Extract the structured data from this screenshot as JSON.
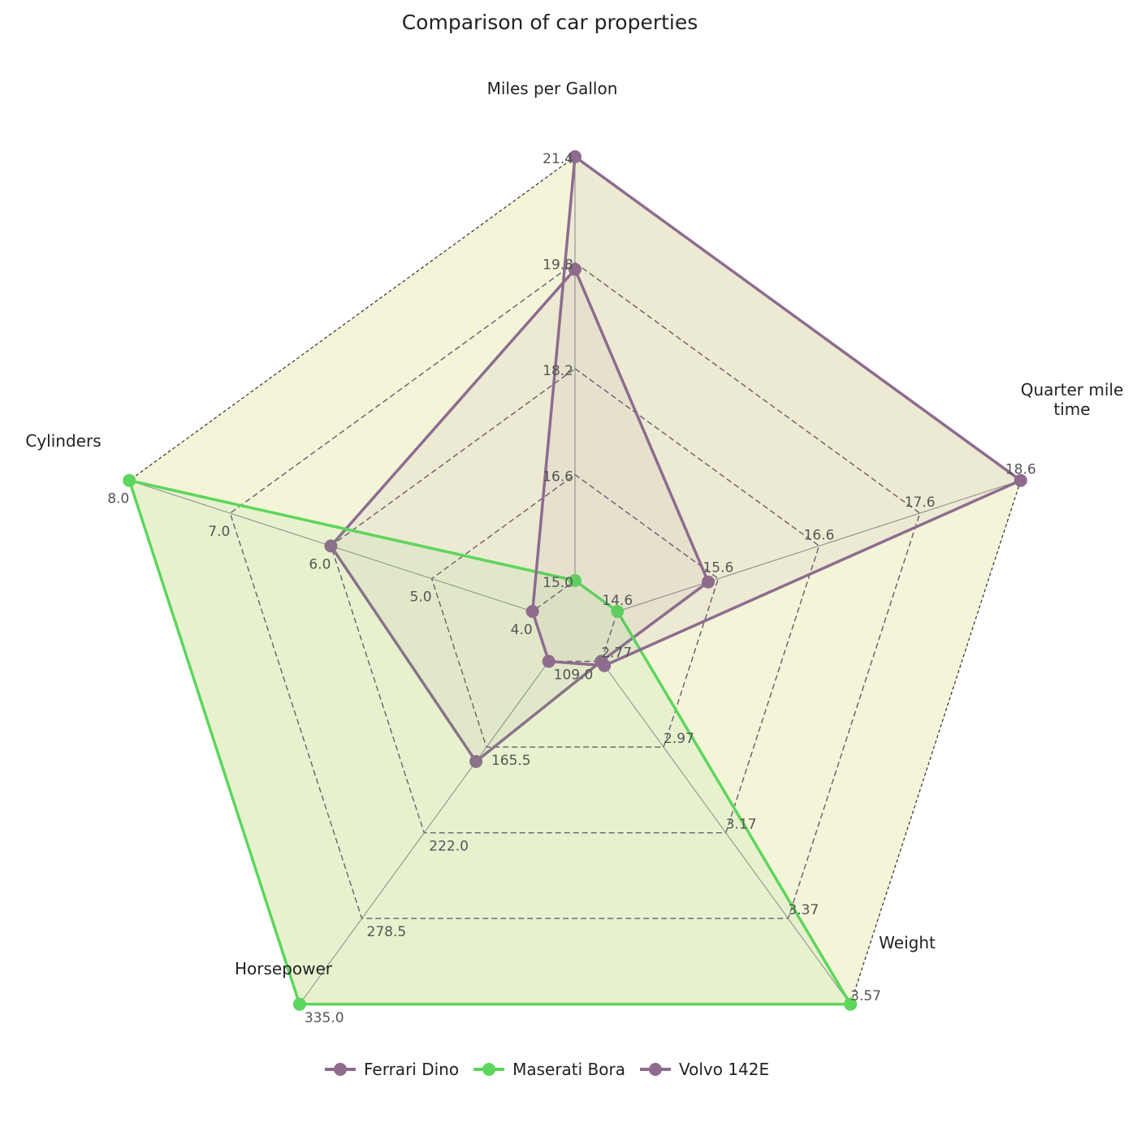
{
  "chart_data": {
    "type": "radar",
    "title": "Comparison of car properties",
    "axes": [
      {
        "label": "Miles per Gallon",
        "min": 15.0,
        "max": 21.4,
        "ticks": [
          "15.0",
          "16.6",
          "18.2",
          "19.8",
          "21.4"
        ]
      },
      {
        "label": "Quarter mile time",
        "min": 14.6,
        "max": 18.6,
        "ticks": [
          "14.6",
          "15.6",
          "16.6",
          "17.6",
          "18.6"
        ]
      },
      {
        "label": "Weight",
        "min": 2.77,
        "max": 3.57,
        "ticks": [
          "2.77",
          "2.97",
          "3.17",
          "3.37",
          "3.57"
        ]
      },
      {
        "label": "Horsepower",
        "min": 109.0,
        "max": 335.0,
        "ticks": [
          "109.0",
          "165.5",
          "222.0",
          "278.5",
          "335.0"
        ]
      },
      {
        "label": "Cylinders",
        "min": 4.0,
        "max": 8.0,
        "ticks": [
          "4.0",
          "5.0",
          "6.0",
          "7.0",
          "8.0"
        ]
      }
    ],
    "series": [
      {
        "name": "Ferrari Dino",
        "color": "#8e6b8f",
        "values": [
          19.7,
          15.5,
          2.77,
          175,
          6
        ]
      },
      {
        "name": "Maserati Bora",
        "color": "#5cd65c",
        "values": [
          15.0,
          14.6,
          3.57,
          335,
          8
        ]
      },
      {
        "name": "Volvo 142E",
        "color": "#8e6b8f",
        "values": [
          21.4,
          18.6,
          2.78,
          109,
          4
        ]
      }
    ],
    "grid": true,
    "fill": "#f4f4d8",
    "legend": "bottom"
  }
}
